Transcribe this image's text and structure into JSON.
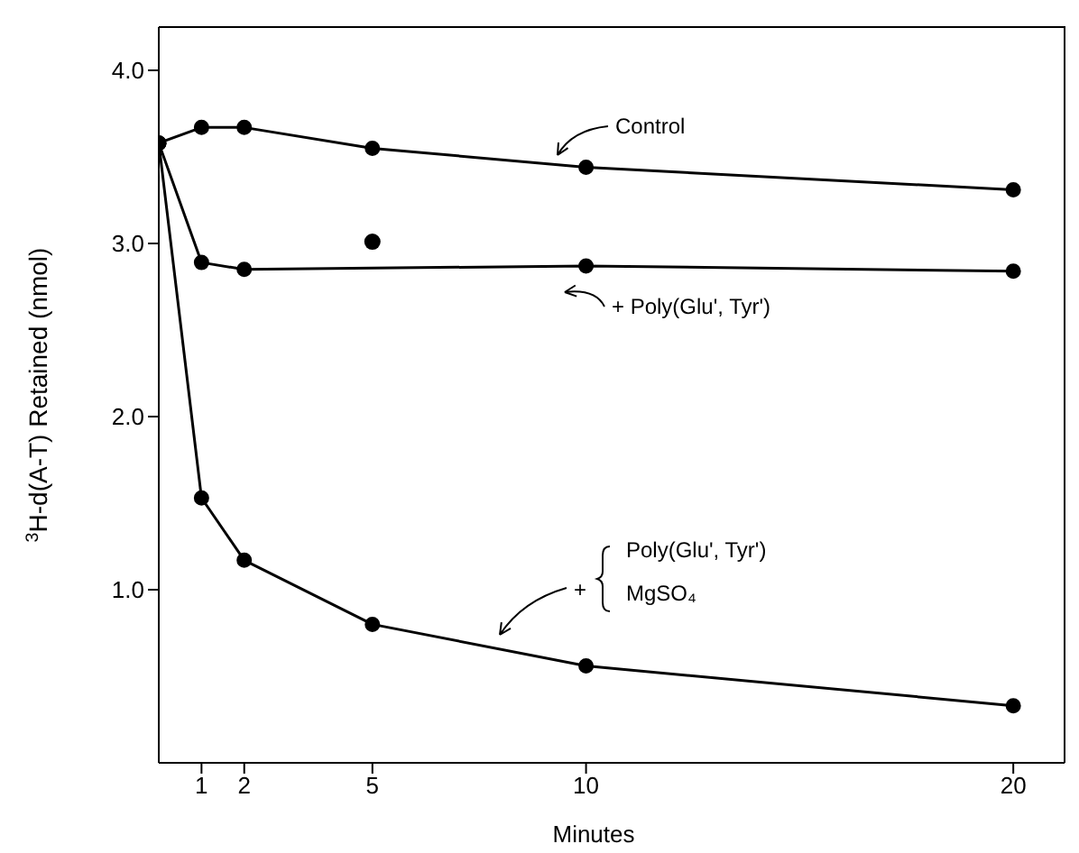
{
  "chart_data": {
    "type": "line",
    "xlabel": "Minutes",
    "ylabel": "$^{3}$H-d(A-T) Retained (nmol)",
    "x": [
      0,
      1,
      2,
      5,
      10,
      20
    ],
    "xlim": [
      0,
      21.2
    ],
    "ylim": [
      0,
      4.25
    ],
    "xticks": [
      1,
      2,
      5,
      10,
      20
    ],
    "yticks": [
      {
        "value": 1,
        "label": "1.0"
      },
      {
        "value": 2,
        "label": "2.0"
      },
      {
        "value": 3,
        "label": "3.0"
      },
      {
        "value": 4,
        "label": "4.0"
      }
    ],
    "marker": "circle",
    "line_style": "solid",
    "annotations": [
      "Control",
      "+ Poly(Glu', Tyr')",
      "+",
      "Poly(Glu', Tyr')",
      "MgSO₄"
    ],
    "series": [
      {
        "color": "#000000",
        "values": [
          3.58,
          3.67,
          3.67,
          3.55,
          3.44,
          3.31
        ]
      },
      {
        "color": "#000000",
        "x": [
          0,
          1,
          2,
          10,
          20
        ],
        "values": [
          3.58,
          2.89,
          2.85,
          2.87,
          2.84
        ]
      },
      {
        "color": "#000000",
        "values": [
          3.58,
          1.53,
          1.17,
          0.8,
          0.56,
          0.33
        ]
      },
      {
        "type": "scatter",
        "color": "#000000",
        "x": [
          5
        ],
        "values": [
          3.01
        ]
      }
    ]
  }
}
